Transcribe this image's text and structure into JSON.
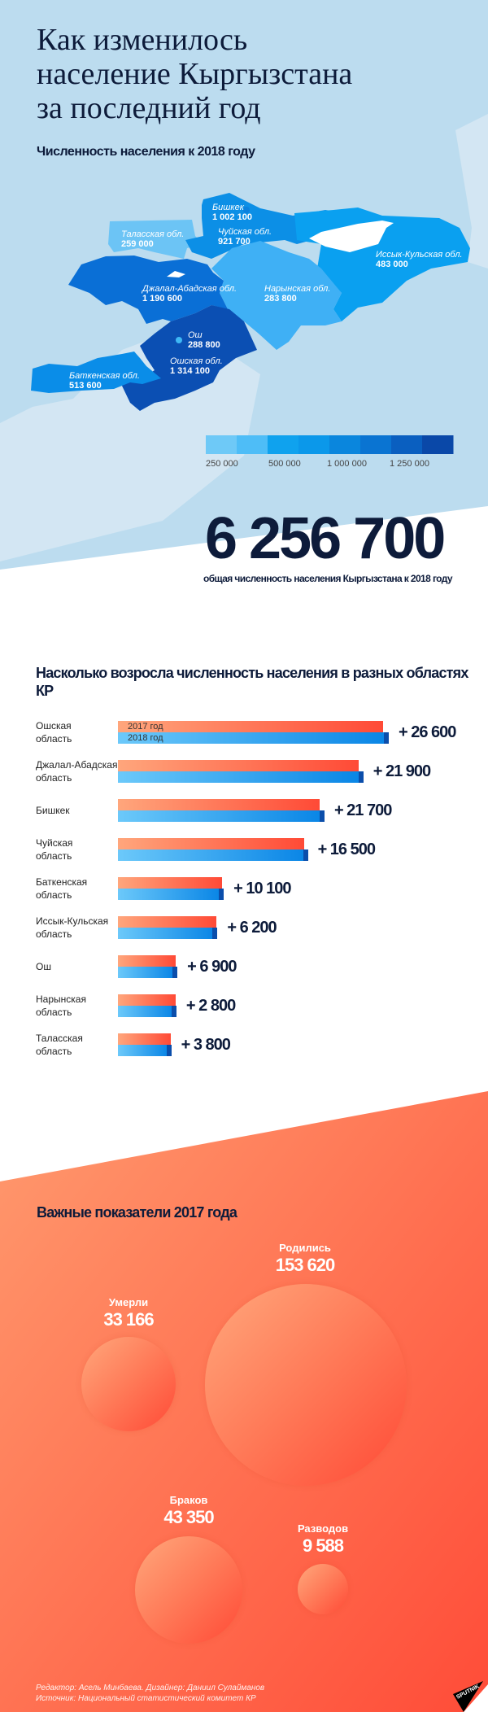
{
  "header": {
    "title_lines": [
      "Как изменилось",
      "население Кыргызстана",
      "за последний год"
    ],
    "subtitle": "Численность населения к 2018 году"
  },
  "map": {
    "regions": [
      {
        "name": "Бишкек",
        "value": "1 002 100",
        "color": "#0c8fe6"
      },
      {
        "name": "Таласская обл.",
        "value": "259 000",
        "color": "#6cc4f5"
      },
      {
        "name": "Чуйская обл.",
        "value": "921 700",
        "color": "#0c8fe6"
      },
      {
        "name": "Иссык-Кульская обл.",
        "value": "483 000",
        "color": "#0aa0f0"
      },
      {
        "name": "Джалал-Абадская обл.",
        "value": "1 190 600",
        "color": "#0a6fd6"
      },
      {
        "name": "Нарынская обл.",
        "value": "283 800",
        "color": "#3fb0f5"
      },
      {
        "name": "Ош",
        "value": "288 800",
        "color": "#3fb8f5"
      },
      {
        "name": "Ошская обл.",
        "value": "1 314 100",
        "color": "#0b4fb3"
      },
      {
        "name": "Баткенская обл.",
        "value": "513 600",
        "color": "#0a8de8"
      }
    ],
    "legend": {
      "colors": [
        "#6ec9f7",
        "#4ebdf7",
        "#0fa2ee",
        "#0b98ea",
        "#0a86dd",
        "#0a74d2",
        "#0a5fc0",
        "#0a48a8"
      ],
      "labels": [
        "250 000",
        "500 000",
        "1 000 000",
        "1 250 000"
      ]
    }
  },
  "total": {
    "value": "6 256 700",
    "caption": "общая численность населения Кыргызстана к 2018 году"
  },
  "chart_data": {
    "type": "bar",
    "title": "Насколько возросла численность населения в разных областях КР",
    "legend": [
      "2017 год",
      "2018 год"
    ],
    "categories": [
      "Ошская\nобласть",
      "Джалал-Абадская\nобласть",
      "Бишкек",
      "Чуйская\nобласть",
      "Баткенская\nобласть",
      "Иссык-Кульская\nобласть",
      "Ош",
      "Нарынская\nобласть",
      "Таласская\nобласть"
    ],
    "series": [
      {
        "name": "2017 год",
        "values": [
          1287500,
          1168700,
          980400,
          905200,
          503500,
          476800,
          281900,
          281000,
          255200
        ],
        "color": "#ff5a3c"
      },
      {
        "name": "2018 год",
        "values": [
          1314100,
          1190600,
          1002100,
          921700,
          513600,
          483000,
          288800,
          283800,
          259000
        ],
        "color": "#0a86e6"
      }
    ],
    "increase_labels": [
      "+ 26 600",
      "+ 21 900",
      "+ 21 700",
      "+ 16 500",
      "+ 10 100",
      "+ 6 200",
      "+ 6 900",
      "+ 2 800",
      "+ 3 800"
    ],
    "xlim": [
      0,
      1314100
    ]
  },
  "indicators": {
    "title": "Важные показатели 2017 года",
    "items": [
      {
        "label": "Родились",
        "value": "153 620"
      },
      {
        "label": "Умерли",
        "value": "33 166"
      },
      {
        "label": "Браков",
        "value": "43 350"
      },
      {
        "label": "Разводов",
        "value": "9 588"
      }
    ]
  },
  "footer": {
    "credits": "Редактор: Асель Минбаева. Дизайнер: Даниил Сулайманов",
    "source": "Источник: Национальный статистический комитет КР"
  },
  "logo": "SPUTNIK"
}
